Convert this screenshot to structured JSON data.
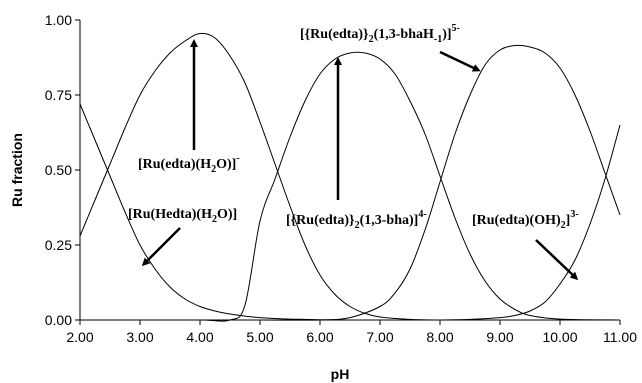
{
  "chart_data": {
    "type": "line",
    "xlabel": "pH",
    "ylabel": "Ru fraction",
    "xlim": [
      2.0,
      11.0
    ],
    "ylim": [
      0.0,
      1.0
    ],
    "xticks": [
      "2.00",
      "3.00",
      "4.00",
      "5.00",
      "6.00",
      "7.00",
      "8.00",
      "9.00",
      "10.00",
      "11.00"
    ],
    "yticks": [
      "0.00",
      "0.25",
      "0.50",
      "0.75",
      "1.00"
    ],
    "grid": false,
    "series": [
      {
        "x": [
          2.0,
          2.25,
          2.5,
          2.75,
          3.0,
          3.25,
          3.5,
          3.75,
          4.0,
          4.25,
          4.5,
          4.75,
          5.0,
          5.25,
          5.5,
          5.75,
          6.0,
          6.5,
          7.0,
          8.0,
          9.0,
          10.0,
          11.0
        ],
        "y": [
          0.72,
          0.6,
          0.48,
          0.36,
          0.25,
          0.17,
          0.11,
          0.07,
          0.045,
          0.03,
          0.02,
          0.013,
          0.008,
          0.005,
          0.003,
          0.002,
          0.001,
          0.0,
          0.0,
          0.0,
          0.0,
          0.0,
          0.0
        ]
      },
      {
        "x": [
          2.0,
          2.25,
          2.5,
          2.75,
          3.0,
          3.25,
          3.5,
          3.75,
          4.0,
          4.25,
          4.5,
          4.75,
          5.0,
          5.25,
          5.5,
          5.75,
          6.0,
          6.25,
          6.5,
          6.75,
          7.0,
          7.5,
          8.0,
          9.0,
          10.0,
          11.0
        ],
        "y": [
          0.28,
          0.4,
          0.52,
          0.64,
          0.75,
          0.83,
          0.89,
          0.93,
          0.955,
          0.94,
          0.88,
          0.79,
          0.66,
          0.52,
          0.38,
          0.25,
          0.15,
          0.085,
          0.045,
          0.022,
          0.01,
          0.002,
          0.0,
          0.0,
          0.0,
          0.0
        ]
      },
      {
        "x": [
          2.0,
          3.0,
          4.0,
          4.5,
          4.75,
          5.0,
          5.25,
          5.5,
          5.75,
          6.0,
          6.25,
          6.5,
          6.75,
          7.0,
          7.25,
          7.5,
          7.75,
          8.0,
          8.25,
          8.5,
          8.75,
          9.0,
          9.25,
          9.5,
          10.0,
          11.0
        ],
        "y": [
          0.0,
          0.0,
          0.0,
          0.0,
          0.05,
          0.33,
          0.47,
          0.61,
          0.73,
          0.82,
          0.87,
          0.89,
          0.89,
          0.87,
          0.82,
          0.73,
          0.62,
          0.48,
          0.34,
          0.22,
          0.13,
          0.07,
          0.035,
          0.015,
          0.003,
          0.0
        ]
      },
      {
        "x": [
          2.0,
          3.0,
          4.0,
          5.0,
          6.0,
          6.5,
          7.0,
          7.25,
          7.5,
          7.75,
          8.0,
          8.25,
          8.5,
          8.75,
          9.0,
          9.25,
          9.5,
          9.75,
          10.0,
          10.25,
          10.5,
          10.75,
          11.0
        ],
        "y": [
          0.0,
          0.0,
          0.0,
          0.0,
          0.0,
          0.008,
          0.045,
          0.09,
          0.17,
          0.3,
          0.46,
          0.62,
          0.75,
          0.85,
          0.9,
          0.915,
          0.91,
          0.89,
          0.84,
          0.75,
          0.63,
          0.49,
          0.35
        ]
      },
      {
        "x": [
          2.0,
          3.0,
          4.0,
          5.0,
          6.0,
          7.0,
          8.0,
          8.5,
          9.0,
          9.25,
          9.5,
          9.75,
          10.0,
          10.25,
          10.5,
          10.75,
          11.0
        ],
        "y": [
          0.0,
          0.0,
          0.0,
          0.0,
          0.0,
          0.0,
          0.0,
          0.002,
          0.008,
          0.015,
          0.03,
          0.06,
          0.12,
          0.2,
          0.32,
          0.47,
          0.65
        ]
      }
    ],
    "annotations": {
      "ru_edta_h2o": {
        "main": "[Ru(edta)(H",
        "sub": "2",
        "tail": "O)]",
        "sup": "-"
      },
      "ru_hedta_h2o": {
        "main": "[Ru(Hedta)(H",
        "sub": "2",
        "tail": "O)]"
      },
      "dimer_bha": {
        "a": "[{Ru(edta)}",
        "sub": "2",
        "b": "(1,3-bha)]",
        "sup": "4-"
      },
      "dimer_bhaH": {
        "a": "[{Ru(edta)}",
        "sub1": "2",
        "b": "(1,3-bhaH",
        "sub2": "-1",
        "c": ")]",
        "sup": "5-"
      },
      "ru_edta_oh2": {
        "a": "[Ru(edta)(OH)",
        "sub": "2",
        "b": "]",
        "sup": "3-"
      }
    }
  }
}
